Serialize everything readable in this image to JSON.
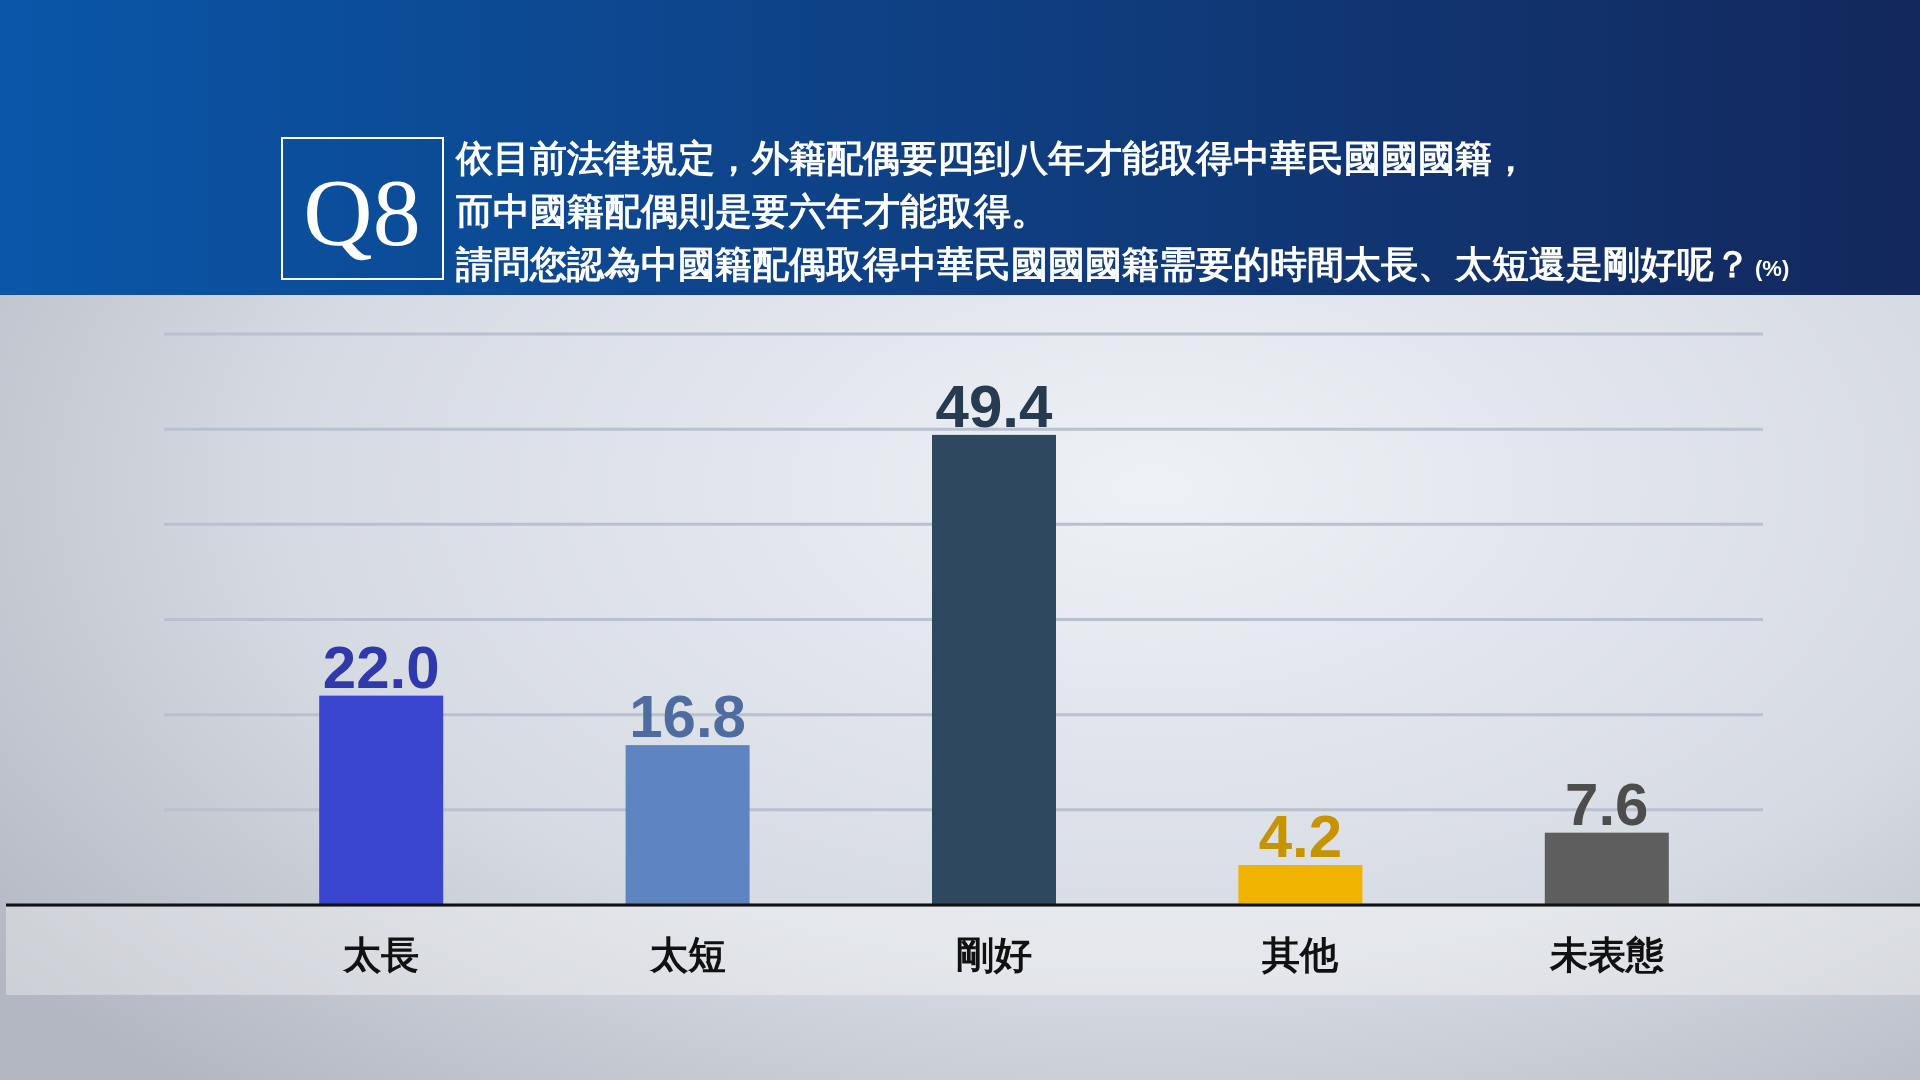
{
  "chart_data": {
    "type": "bar",
    "title": "Q8",
    "subtitle": "依目前法律規定，外籍配偶要四到八年才能取得中華民國國國籍，而中國籍配偶則是要六年才能取得。請問您認為中國籍配偶取得中華民國國國籍需要的時間太長、太短還是剛好呢？",
    "annotations": [
      "(%)"
    ],
    "categories": [
      "太長",
      "太短",
      "剛好",
      "其他",
      "未表態"
    ],
    "values": [
      22.0,
      16.8,
      49.4,
      4.2,
      7.6
    ],
    "value_labels": [
      "22.0",
      "16.8",
      "49.4",
      "4.2",
      "7.6"
    ],
    "colors": [
      "#3a45d0",
      "#5f84c2",
      "#2e4860",
      "#f0b400",
      "#5e5e5e"
    ],
    "ylim": [
      0,
      60
    ],
    "yticks": [
      {
        "value": 0,
        "label": null
      },
      {
        "value": 10,
        "label": null
      },
      {
        "value": 20,
        "label": null
      },
      {
        "value": 30,
        "label": null
      },
      {
        "value": 40,
        "label": null
      },
      {
        "value": 50,
        "label": null
      },
      {
        "value": 60,
        "label": null
      }
    ],
    "grid": "y",
    "tick_labels": "x"
  }
}
